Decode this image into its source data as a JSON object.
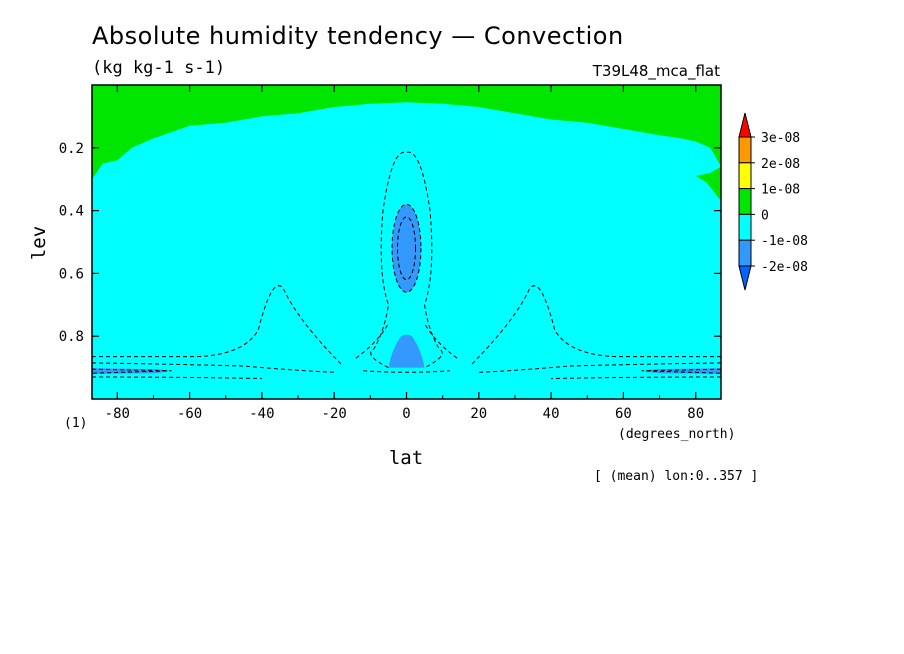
{
  "header": {
    "title": "Absolute humidity tendency — Convection",
    "units": "(kg kg-1 s-1)",
    "run_name": "T39L48_mca_flat"
  },
  "footer": {
    "mean_note": "[ (mean) lon:0..357 ]",
    "corner_label": "(1)"
  },
  "colors": {
    "green": "#00e600",
    "cyan": "#00ffff",
    "blue": "#3399ff",
    "yellow": "#ffff00",
    "orange": "#ff9900",
    "red": "#ff0000",
    "darkblue": "#0066ff"
  },
  "chart_data": {
    "type": "heatmap",
    "xlabel": "lat",
    "xunits": "(degrees_north)",
    "ylabel": "lev",
    "xlim": [
      -87,
      87
    ],
    "ylim": [
      1.0,
      0.0
    ],
    "x_ticks": [
      -80,
      -60,
      -40,
      -20,
      0,
      20,
      40,
      60,
      80
    ],
    "y_ticks": [
      0.2,
      0.4,
      0.6,
      0.8
    ],
    "legend": {
      "placement": "right",
      "levels": [
        "3e-08",
        "2e-08",
        "1e-08",
        "0",
        "-1e-08",
        "-2e-08"
      ],
      "bins": [
        {
          "range": "> 3e-08",
          "color": "#ff0000"
        },
        {
          "range": "2e-08 to 3e-08",
          "color": "#ff9900"
        },
        {
          "range": "1e-08 to 2e-08",
          "color": "#ffff00"
        },
        {
          "range": "0 to 1e-08",
          "color": "#00e600"
        },
        {
          "range": "-1e-08 to 0",
          "color": "#00ffff"
        },
        {
          "range": "-2e-08 to -1e-08",
          "color": "#3399ff"
        },
        {
          "range": "< -2e-08",
          "color": "#0066ff"
        }
      ]
    },
    "regions": {
      "upper_positive_boundary": [
        [
          -87,
          0.3
        ],
        [
          -84,
          0.25
        ],
        [
          -80,
          0.24
        ],
        [
          -76,
          0.2
        ],
        [
          -70,
          0.17
        ],
        [
          -65,
          0.15
        ],
        [
          -60,
          0.13
        ],
        [
          -50,
          0.12
        ],
        [
          -40,
          0.1
        ],
        [
          -30,
          0.09
        ],
        [
          -20,
          0.07
        ],
        [
          -10,
          0.06
        ],
        [
          0,
          0.055
        ],
        [
          10,
          0.06
        ],
        [
          20,
          0.07
        ],
        [
          30,
          0.09
        ],
        [
          40,
          0.11
        ],
        [
          50,
          0.12
        ],
        [
          60,
          0.14
        ],
        [
          70,
          0.16
        ],
        [
          76,
          0.17
        ],
        [
          80,
          0.18
        ],
        [
          84,
          0.2
        ],
        [
          87,
          0.26
        ]
      ],
      "equatorial_upper_minimum": {
        "lat_range": [
          -4,
          4
        ],
        "lev_range": [
          0.38,
          0.66
        ]
      },
      "equatorial_lower_minimum": {
        "lat_range": [
          -5,
          5
        ],
        "lev_range": [
          0.8,
          0.91
        ]
      },
      "southern_surface_minimum": {
        "lat_range": [
          -87,
          -62
        ],
        "lev_range": [
          0.9,
          0.92
        ]
      },
      "northern_surface_minimum": {
        "lat_range": [
          62,
          87
        ],
        "lev_range": [
          0.9,
          0.92
        ]
      }
    }
  }
}
